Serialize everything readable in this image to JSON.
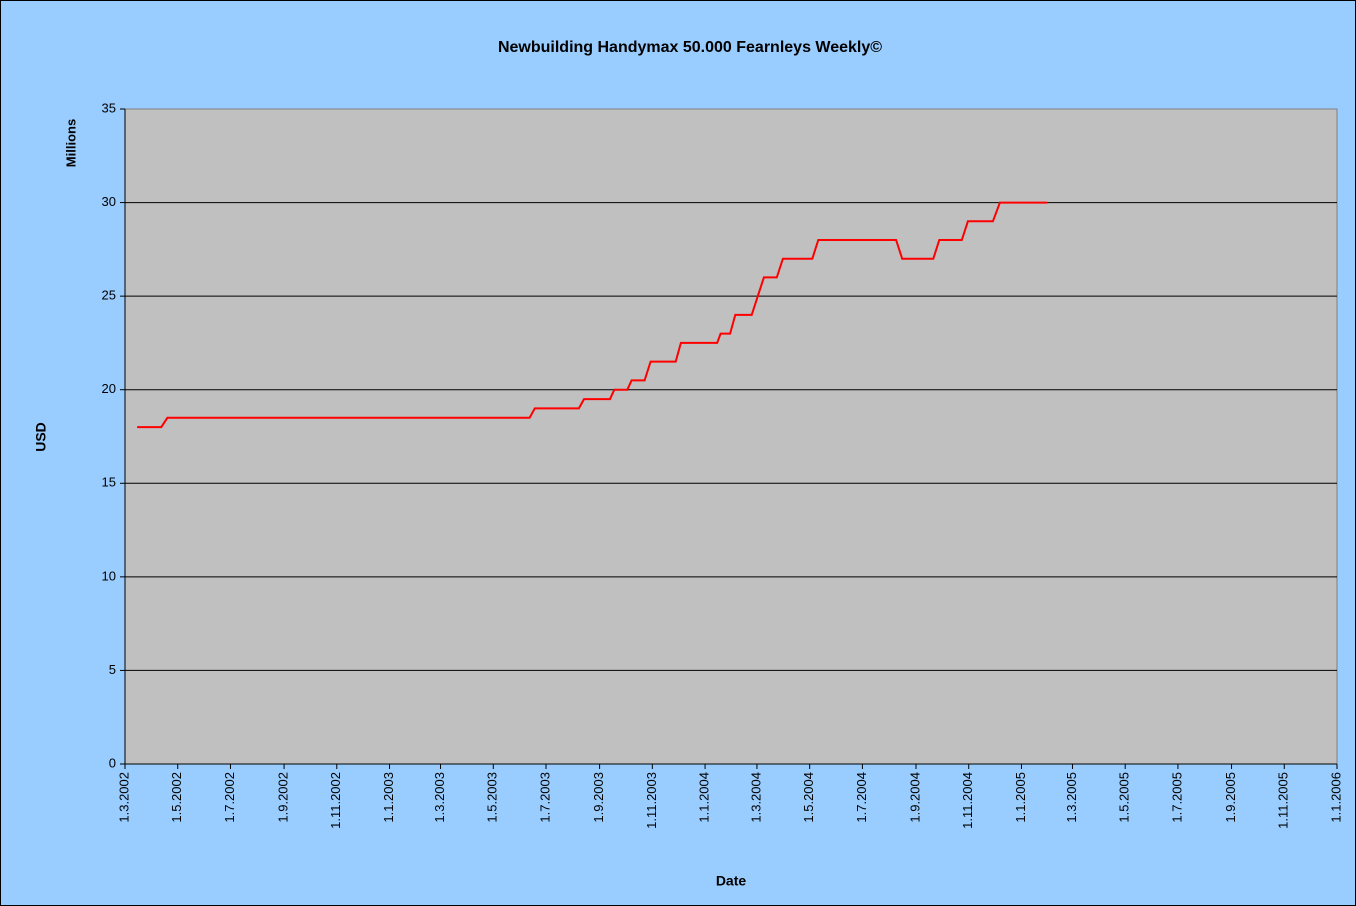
{
  "chart_data": {
    "type": "line",
    "title": "Newbuilding Handymax 50.000 Fearnleys Weekly©",
    "ylabel": "USD",
    "yunit": "Millions",
    "xlabel": "Date",
    "xlim": [
      "1.3.2002",
      "1.1.2006"
    ],
    "xticks": [
      "1.3.2002",
      "1.5.2002",
      "1.7.2002",
      "1.9.2002",
      "1.11.2002",
      "1.1.2003",
      "1.3.2003",
      "1.5.2003",
      "1.7.2003",
      "1.9.2003",
      "1.11.2003",
      "1.1.2004",
      "1.3.2004",
      "1.5.2004",
      "1.7.2004",
      "1.9.2004",
      "1.11.2004",
      "1.1.2005",
      "1.3.2005",
      "1.5.2005",
      "1.7.2005",
      "1.9.2005",
      "1.11.2005",
      "1.1.2006"
    ],
    "ylim": [
      0,
      35
    ],
    "yticks": [
      0,
      5,
      10,
      15,
      20,
      25,
      30,
      35
    ],
    "grid": true,
    "series": [
      {
        "name": "Newbuilding Handymax 50.000",
        "color": "#ff0000",
        "x": [
          "15.3.2002",
          "12.4.2002",
          "19.4.2002",
          "12.6.2003",
          "18.6.2003",
          "8.8.2003",
          "14.8.2003",
          "13.9.2003",
          "18.9.2003",
          "3.10.2003",
          "8.10.2003",
          "23.10.2003",
          "30.10.2003",
          "28.11.2003",
          "4.12.2003",
          "15.1.2004",
          "19.1.2004",
          "30.1.2004",
          "5.2.2004",
          "24.2.2004",
          "9.3.2004",
          "24.3.2004",
          "31.3.2004",
          "4.5.2004",
          "11.5.2004",
          "9.8.2004",
          "16.8.2004",
          "21.9.2004",
          "28.9.2004",
          "24.10.2004",
          "31.10.2004",
          "29.11.2004",
          "7.12.2004",
          "31.1.2005"
        ],
        "values": [
          18,
          18,
          18.5,
          18.5,
          19,
          19,
          19.5,
          19.5,
          20,
          20,
          20.5,
          20.5,
          21.5,
          21.5,
          22.5,
          22.5,
          23,
          23,
          24,
          24,
          26,
          26,
          27,
          27,
          28,
          28,
          27,
          27,
          28,
          28,
          29,
          29,
          30,
          30
        ]
      }
    ]
  }
}
